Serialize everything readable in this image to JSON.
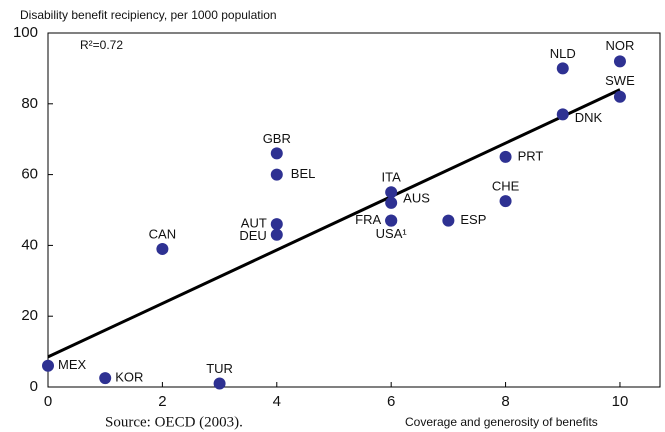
{
  "chart_data": {
    "type": "scatter",
    "title": "Disability benefit recipiency, per 1000 population",
    "xlabel": "Coverage and generosity of benefits",
    "annotation": "R²=0.72",
    "source": "Source: OECD (2003).",
    "color": "#2e3192",
    "labels": [
      "MEX",
      "KOR",
      "TUR",
      "CAN",
      "AUT",
      "DEU",
      "GBR",
      "BEL",
      "ITA",
      "AUS",
      "FRA",
      "USA¹",
      "ESP",
      "CHE",
      "PRT",
      "NLD",
      "DNK",
      "NOR",
      "SWE"
    ],
    "x": [
      0,
      1,
      3,
      2,
      4,
      4,
      4,
      4,
      6,
      6,
      6,
      6,
      7,
      8,
      8,
      9,
      9,
      10,
      10
    ],
    "values": [
      6,
      2.5,
      1,
      39,
      46,
      43,
      66,
      60,
      55,
      52,
      47,
      47,
      47,
      52.5,
      65,
      90,
      77,
      92,
      82
    ],
    "trendline": {
      "x": [
        0,
        10
      ],
      "values": [
        8.5,
        84
      ]
    },
    "xlim": [
      0,
      10.7
    ],
    "xticks": [
      0,
      2,
      4,
      6,
      8,
      10
    ],
    "ylim": [
      0,
      100
    ],
    "yticks": [
      0,
      20,
      40,
      60,
      80,
      100
    ]
  }
}
